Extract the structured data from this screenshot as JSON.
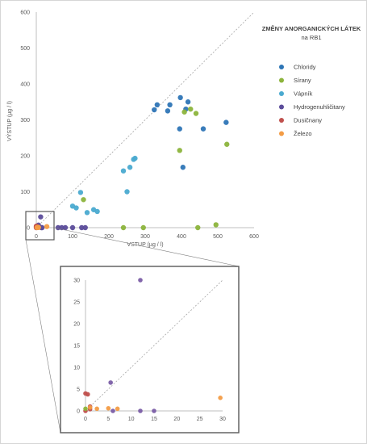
{
  "chart_data": [
    {
      "type": "scatter",
      "title": "ZMĚNY ANORGANICKÝCH LÁTEK",
      "subtitle": "na RB1",
      "xlabel": "VSTUP (µg / l)",
      "ylabel": "VÝSTUP (µg / l)",
      "xlim": [
        0,
        600
      ],
      "ylim": [
        0,
        600
      ],
      "xticks": [
        "0",
        "100",
        "200",
        "300",
        "400",
        "500",
        "600"
      ],
      "yticks": [
        "0",
        "100",
        "200",
        "300",
        "400",
        "500",
        "600"
      ],
      "grid": false,
      "diagonal_line": true,
      "legend_position": "right",
      "series": [
        {
          "name": "Chloridy",
          "color": "#2e75b6",
          "points": [
            [
              325,
              328
            ],
            [
              333,
              342
            ],
            [
              362,
              325
            ],
            [
              368,
              342
            ],
            [
              395,
              275
            ],
            [
              397,
              362
            ],
            [
              412,
              330
            ],
            [
              418,
              350
            ],
            [
              404,
              168
            ],
            [
              460,
              275
            ],
            [
              523,
              293
            ]
          ]
        },
        {
          "name": "Sírany",
          "color": "#8cb43c",
          "points": [
            [
              130,
              78
            ],
            [
              395,
              215
            ],
            [
              408,
              322
            ],
            [
              425,
              330
            ],
            [
              440,
              318
            ],
            [
              495,
              8
            ],
            [
              445,
              0
            ],
            [
              295,
              0
            ],
            [
              240,
              0
            ],
            [
              525,
              232
            ]
          ]
        },
        {
          "name": "Vápník",
          "color": "#4aaad0",
          "points": [
            [
              100,
              60
            ],
            [
              110,
              55
            ],
            [
              122,
              98
            ],
            [
              140,
              42
            ],
            [
              158,
              50
            ],
            [
              168,
              45
            ],
            [
              240,
              158
            ],
            [
              250,
              100
            ],
            [
              258,
              168
            ],
            [
              268,
              190
            ],
            [
              272,
              193
            ]
          ]
        },
        {
          "name": "Hydrogenuhličitany",
          "color": "#5b4c9a",
          "points": [
            [
              12,
              30
            ],
            [
              6,
              7
            ],
            [
              14,
              0
            ],
            [
              16,
              0
            ],
            [
              60,
              0
            ],
            [
              70,
              0
            ],
            [
              80,
              0
            ],
            [
              100,
              0
            ],
            [
              125,
              0
            ],
            [
              135,
              0
            ]
          ]
        },
        {
          "name": "Dusičnany",
          "color": "#c0504d",
          "points": [
            [
              0,
              4
            ],
            [
              0.5,
              3.8
            ],
            [
              1,
              1
            ],
            [
              0,
              0
            ],
            [
              1,
              0.5
            ]
          ]
        },
        {
          "name": "Železo",
          "color": "#f39c46",
          "points": [
            [
              2,
              0.5
            ],
            [
              3,
              0.2
            ],
            [
              5,
              0.5
            ],
            [
              6,
              0.7
            ],
            [
              29,
              3
            ]
          ]
        }
      ]
    },
    {
      "type": "scatter",
      "title": "",
      "xlim": [
        0,
        30
      ],
      "ylim": [
        0,
        30
      ],
      "xticks": [
        "0",
        "5",
        "10",
        "15",
        "20",
        "25",
        "30"
      ],
      "yticks": [
        "0",
        "5",
        "10",
        "15",
        "20",
        "25",
        "30"
      ],
      "diagonal_line": true,
      "series": [
        {
          "name": "Hydrogenuhličitany",
          "color": "#7b5ea7",
          "points": [
            [
              12,
              30
            ],
            [
              5.5,
              6.5
            ],
            [
              12,
              0
            ],
            [
              15,
              0
            ],
            [
              6,
              0
            ]
          ]
        },
        {
          "name": "Dusičnany",
          "color": "#c0504d",
          "points": [
            [
              0,
              4
            ],
            [
              0.5,
              3.8
            ],
            [
              1,
              1
            ],
            [
              0,
              0
            ],
            [
              1,
              0.4
            ]
          ]
        },
        {
          "name": "Železo",
          "color": "#f39c46",
          "points": [
            [
              2.5,
              0.5
            ],
            [
              5,
              0.6
            ],
            [
              7,
              0.5
            ],
            [
              29.5,
              3
            ],
            [
              1,
              0.8
            ]
          ]
        },
        {
          "name": "Sírany",
          "color": "#8cb43c",
          "points": [
            [
              0,
              0.5
            ]
          ]
        }
      ]
    }
  ]
}
